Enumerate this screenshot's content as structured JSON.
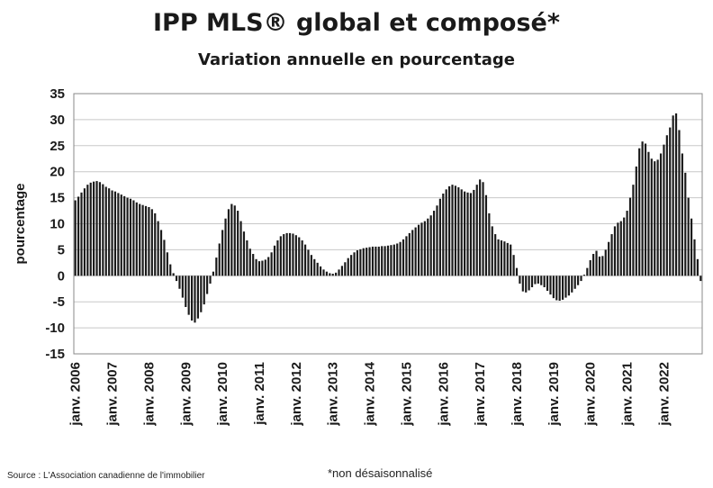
{
  "chart_data": {
    "type": "bar",
    "title": "IPP MLS® global et composé*",
    "subtitle": "Variation annuelle en pourcentage",
    "ylabel": "pourcentage",
    "xlabel": "",
    "ylim": [
      -15,
      35
    ],
    "yticks": [
      -15,
      -10,
      -5,
      0,
      5,
      10,
      15,
      20,
      25,
      30,
      35
    ],
    "grid": true,
    "legend": "none",
    "bar_color": "#1a1a1a",
    "x_tick_labels": [
      "janv. 2006",
      "janv. 2007",
      "janv. 2008",
      "janv. 2009",
      "janv. 2010",
      "janv. 2011",
      "janv. 2012",
      "janv. 2013",
      "janv. 2014",
      "janv. 2015",
      "janv. 2016",
      "janv. 2017",
      "janv. 2018",
      "janv. 2019",
      "janv. 2020",
      "janv. 2021",
      "janv. 2022"
    ],
    "start": "janv. 2006",
    "frequency": "monthly",
    "values": [
      14.5,
      15.2,
      16.0,
      16.8,
      17.5,
      17.9,
      18.1,
      18.2,
      18.0,
      17.6,
      17.1,
      16.8,
      16.4,
      16.2,
      15.9,
      15.6,
      15.3,
      15.0,
      14.8,
      14.5,
      14.1,
      13.8,
      13.6,
      13.4,
      13.2,
      12.8,
      12.0,
      10.5,
      8.8,
      6.9,
      4.5,
      2.2,
      0.5,
      -1.0,
      -2.5,
      -4.2,
      -6.0,
      -7.5,
      -8.6,
      -9.0,
      -8.2,
      -7.0,
      -5.5,
      -3.5,
      -1.5,
      0.8,
      3.5,
      6.2,
      8.8,
      11.0,
      12.8,
      13.8,
      13.5,
      12.5,
      10.5,
      8.5,
      6.8,
      5.2,
      4.2,
      3.2,
      2.8,
      2.9,
      3.1,
      3.6,
      4.5,
      5.8,
      6.8,
      7.6,
      8.0,
      8.2,
      8.2,
      8.1,
      7.8,
      7.4,
      6.8,
      6.0,
      5.0,
      4.0,
      3.2,
      2.5,
      1.8,
      1.2,
      0.8,
      0.5,
      0.4,
      0.6,
      1.2,
      1.9,
      2.6,
      3.4,
      4.0,
      4.5,
      4.9,
      5.1,
      5.3,
      5.4,
      5.5,
      5.6,
      5.6,
      5.6,
      5.7,
      5.7,
      5.8,
      5.9,
      6.0,
      6.2,
      6.5,
      7.0,
      7.6,
      8.2,
      8.8,
      9.3,
      9.8,
      10.2,
      10.5,
      11.0,
      11.6,
      12.5,
      13.5,
      14.8,
      15.8,
      16.6,
      17.2,
      17.5,
      17.3,
      17.0,
      16.6,
      16.2,
      16.0,
      15.9,
      16.5,
      17.5,
      18.5,
      18.0,
      15.5,
      12.0,
      9.5,
      8.0,
      7.0,
      6.8,
      6.6,
      6.3,
      6.0,
      4.0,
      1.5,
      -1.5,
      -3.0,
      -3.2,
      -2.8,
      -2.2,
      -1.6,
      -1.5,
      -1.8,
      -2.2,
      -2.9,
      -3.6,
      -4.3,
      -4.7,
      -4.8,
      -4.6,
      -4.2,
      -3.8,
      -3.2,
      -2.5,
      -1.8,
      -1.0,
      0.2,
      1.5,
      3.0,
      4.2,
      4.8,
      3.7,
      3.8,
      5.0,
      6.5,
      8.0,
      9.5,
      10.2,
      10.5,
      11.2,
      12.5,
      15.0,
      17.5,
      21.0,
      24.5,
      25.8,
      25.4,
      23.8,
      22.5,
      22.0,
      22.3,
      23.5,
      25.2,
      27.0,
      28.5,
      30.8,
      31.2,
      28.0,
      23.5,
      19.8,
      15.0,
      11.0,
      7.0,
      3.2,
      -1.0
    ]
  },
  "footer": {
    "source": "Source : L'Association canadienne de l'immobilier",
    "footnote": "*non désaisonnalisé"
  }
}
